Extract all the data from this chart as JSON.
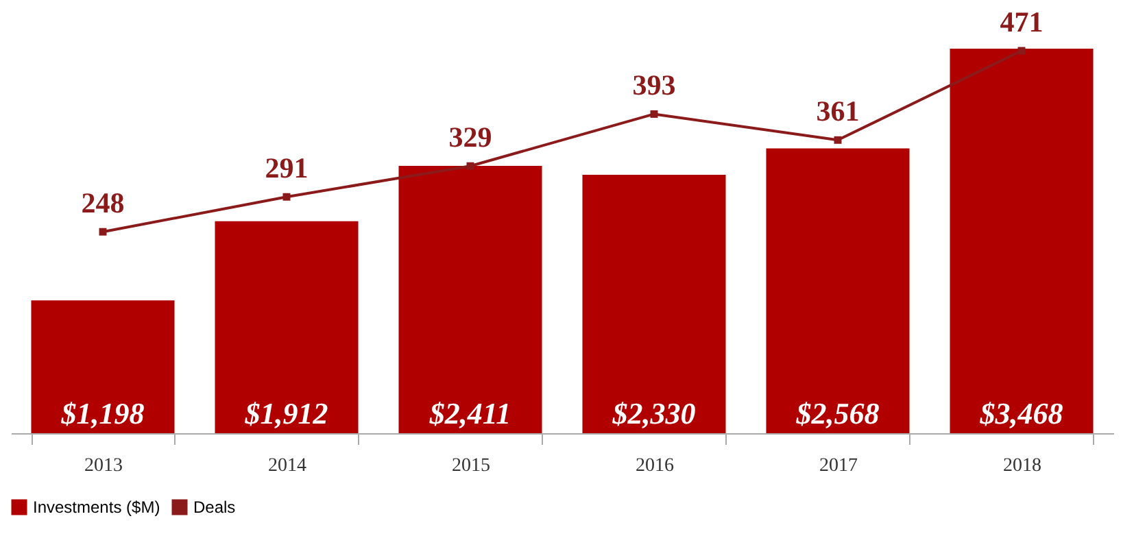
{
  "chart_data": {
    "type": "bar",
    "categories": [
      "2013",
      "2014",
      "2015",
      "2016",
      "2017",
      "2018"
    ],
    "series": [
      {
        "name": "Investments ($M)",
        "color": "#b00000",
        "values": [
          1198,
          1912,
          2411,
          2330,
          2568,
          3468
        ],
        "value_labels": [
          "$1,198",
          "$1,912",
          "$2,411",
          "$2,330",
          "$2,568",
          "$3,468"
        ]
      },
      {
        "name": "Deals",
        "type": "line",
        "axis": "y2",
        "color": "#8b1a1a",
        "values": [
          248,
          291,
          329,
          393,
          361,
          471
        ],
        "value_labels": [
          "248",
          "291",
          "329",
          "393",
          "361",
          "471"
        ]
      }
    ],
    "legend": "bottom",
    "marker": "square"
  }
}
